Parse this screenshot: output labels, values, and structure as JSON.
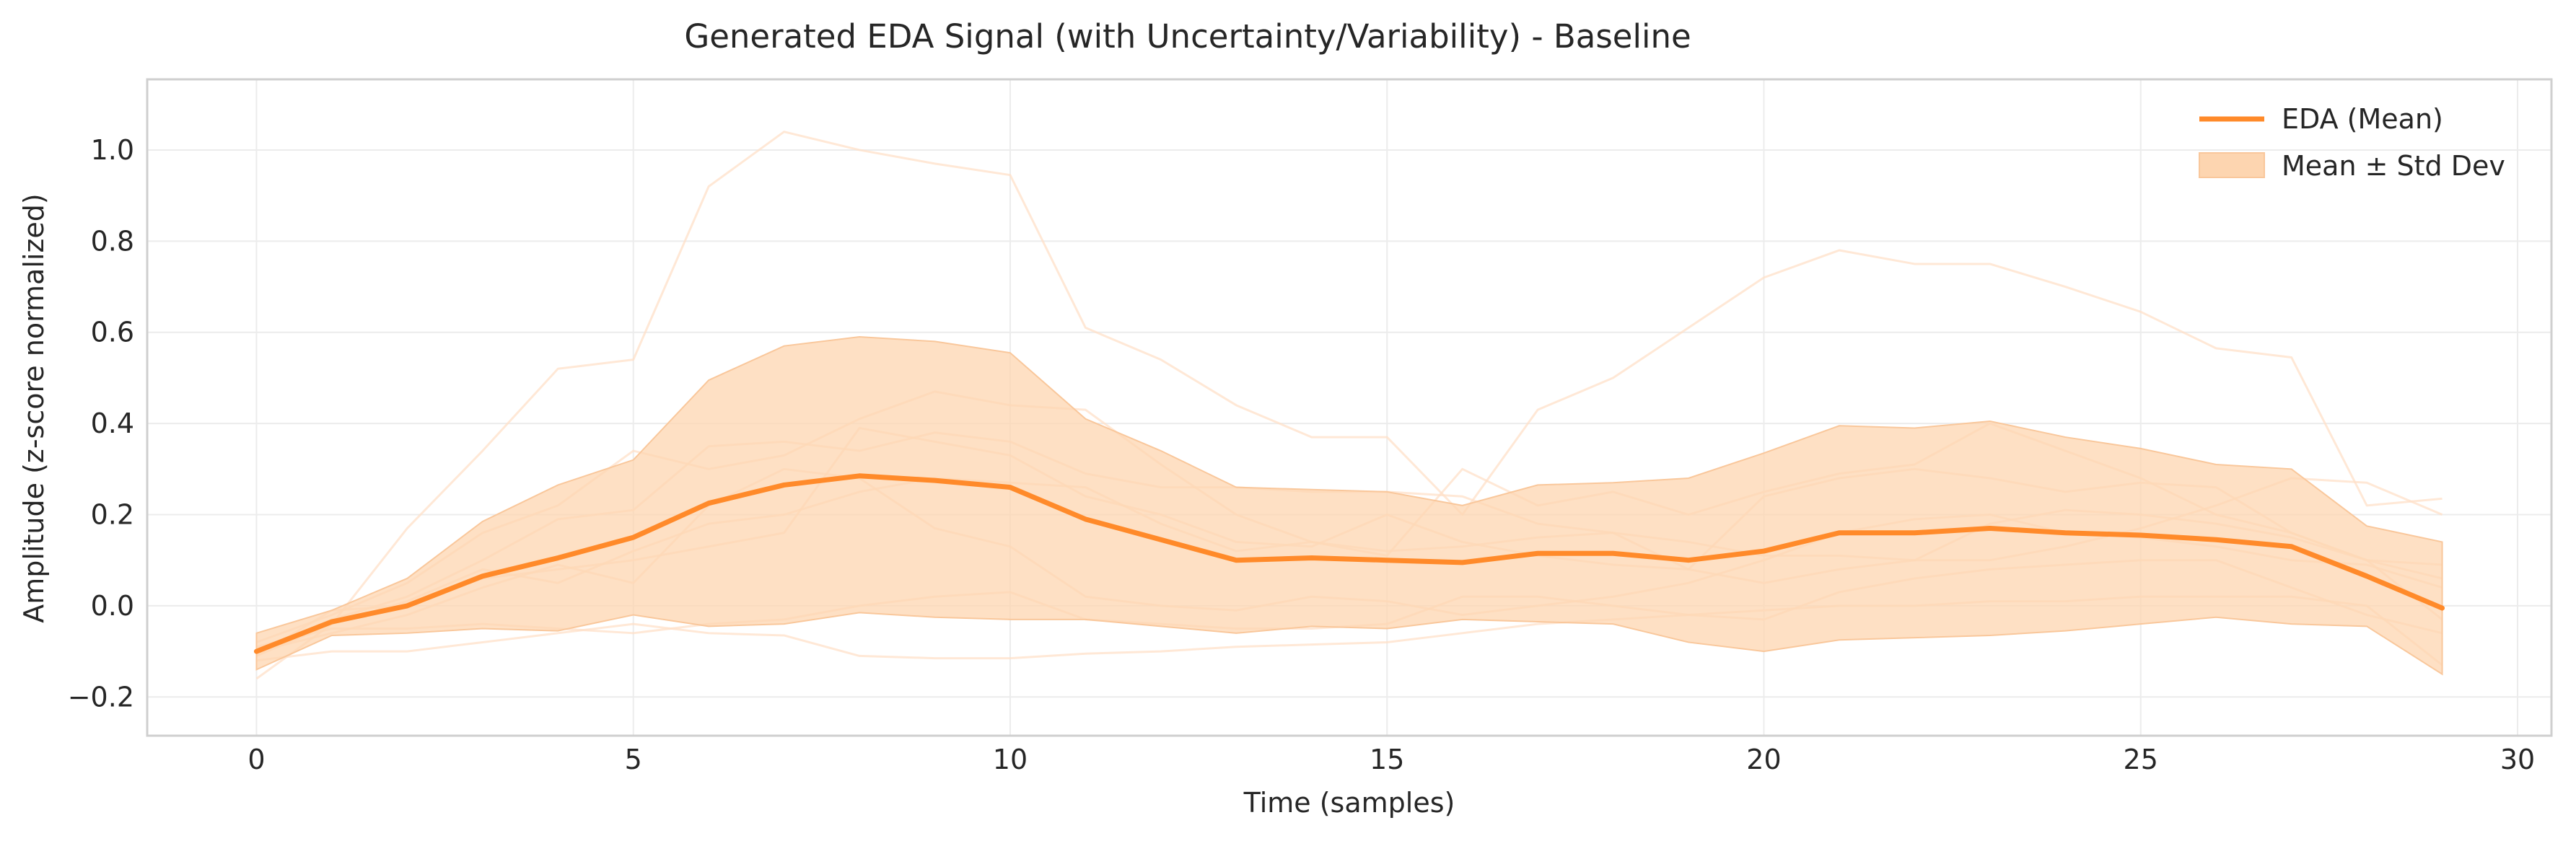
{
  "chart_data": {
    "type": "line",
    "title": "Generated EDA Signal (with Uncertainty/Variability) - Baseline",
    "xlabel": "Time (samples)",
    "ylabel": "Amplitude (z-score normalized)",
    "xlim": [
      -1.45,
      30.45
    ],
    "ylim": [
      -0.285,
      1.155
    ],
    "x_ticks": [
      0,
      5,
      10,
      15,
      20,
      25,
      30
    ],
    "y_ticks": [
      -0.2,
      0.0,
      0.2,
      0.4,
      0.6,
      0.8,
      1.0
    ],
    "grid": true,
    "legend_position": "top-right",
    "colors": {
      "mean": "#ff8a2a",
      "band": "#fdd5b0",
      "band_edge": "#f9c79b",
      "sample": "#ffe0c8"
    },
    "x": [
      0,
      1,
      2,
      3,
      4,
      5,
      6,
      7,
      8,
      9,
      10,
      11,
      12,
      13,
      14,
      15,
      16,
      17,
      18,
      19,
      20,
      21,
      22,
      23,
      24,
      25,
      26,
      27,
      28,
      29
    ],
    "series": [
      {
        "name": "EDA (Mean)",
        "values": [
          -0.1,
          -0.035,
          0.0,
          0.065,
          0.105,
          0.15,
          0.225,
          0.265,
          0.285,
          0.275,
          0.26,
          0.19,
          0.145,
          0.1,
          0.105,
          0.1,
          0.095,
          0.115,
          0.115,
          0.1,
          0.12,
          0.16,
          0.16,
          0.17,
          0.16,
          0.155,
          0.145,
          0.13,
          0.065,
          -0.005
        ]
      }
    ],
    "band": {
      "name": "Mean ± Std Dev",
      "upper": [
        -0.06,
        -0.01,
        0.06,
        0.185,
        0.265,
        0.32,
        0.495,
        0.57,
        0.59,
        0.58,
        0.555,
        0.41,
        0.34,
        0.26,
        0.255,
        0.25,
        0.22,
        0.265,
        0.27,
        0.28,
        0.335,
        0.395,
        0.39,
        0.405,
        0.37,
        0.345,
        0.31,
        0.3,
        0.175,
        0.14
      ],
      "lower": [
        -0.14,
        -0.065,
        -0.06,
        -0.05,
        -0.055,
        -0.02,
        -0.045,
        -0.04,
        -0.015,
        -0.025,
        -0.03,
        -0.03,
        -0.045,
        -0.06,
        -0.045,
        -0.05,
        -0.03,
        -0.035,
        -0.04,
        -0.08,
        -0.1,
        -0.075,
        -0.07,
        -0.065,
        -0.055,
        -0.04,
        -0.025,
        -0.04,
        -0.045,
        -0.15
      ]
    },
    "samples": [
      [
        -0.16,
        -0.04,
        0.17,
        0.34,
        0.52,
        0.54,
        0.92,
        1.04,
        1.0,
        0.97,
        0.945,
        0.61,
        0.54,
        0.44,
        0.37,
        0.37,
        0.2,
        0.43,
        0.5,
        0.61,
        0.72,
        0.78,
        0.75,
        0.75,
        0.7,
        0.645,
        0.565,
        0.545,
        0.22,
        0.235
      ],
      [
        -0.08,
        -0.02,
        0.05,
        0.16,
        0.22,
        0.34,
        0.3,
        0.33,
        0.41,
        0.47,
        0.44,
        0.43,
        0.31,
        0.2,
        0.14,
        0.11,
        0.3,
        0.22,
        0.25,
        0.2,
        0.25,
        0.29,
        0.31,
        0.4,
        0.34,
        0.28,
        0.2,
        0.16,
        0.1,
        0.09
      ],
      [
        -0.12,
        -0.1,
        -0.1,
        -0.08,
        -0.06,
        -0.04,
        -0.06,
        -0.065,
        -0.11,
        -0.115,
        -0.115,
        -0.105,
        -0.1,
        -0.09,
        -0.085,
        -0.08,
        -0.06,
        -0.04,
        -0.03,
        -0.02,
        -0.01,
        0.0,
        0.0,
        0.01,
        0.01,
        0.02,
        0.02,
        0.02,
        0.0,
        -0.13
      ],
      [
        -0.1,
        -0.03,
        0.02,
        0.1,
        0.19,
        0.21,
        0.35,
        0.36,
        0.34,
        0.38,
        0.36,
        0.29,
        0.26,
        0.26,
        0.25,
        0.25,
        0.24,
        0.18,
        0.16,
        0.14,
        0.11,
        0.11,
        0.1,
        0.1,
        0.13,
        0.17,
        0.22,
        0.28,
        0.27,
        0.2
      ],
      [
        -0.09,
        -0.05,
        -0.05,
        -0.04,
        -0.05,
        -0.06,
        -0.04,
        -0.03,
        0.0,
        0.02,
        0.03,
        -0.03,
        -0.04,
        -0.05,
        -0.05,
        -0.04,
        0.02,
        0.02,
        0.0,
        -0.02,
        -0.03,
        0.03,
        0.06,
        0.08,
        0.09,
        0.1,
        0.1,
        0.04,
        -0.02,
        -0.06
      ],
      [
        -0.11,
        -0.01,
        0.0,
        0.06,
        0.08,
        0.1,
        0.13,
        0.16,
        0.39,
        0.36,
        0.33,
        0.24,
        0.2,
        0.14,
        0.13,
        0.2,
        0.14,
        0.11,
        0.09,
        0.08,
        0.24,
        0.28,
        0.3,
        0.28,
        0.25,
        0.27,
        0.26,
        0.16,
        0.1,
        0.06
      ],
      [
        -0.1,
        -0.06,
        -0.02,
        0.04,
        0.09,
        0.05,
        0.22,
        0.3,
        0.28,
        0.17,
        0.13,
        0.02,
        0.0,
        -0.01,
        0.02,
        0.01,
        -0.02,
        0.0,
        0.02,
        0.05,
        0.1,
        0.16,
        0.19,
        0.2,
        0.16,
        0.15,
        0.13,
        0.1,
        0.09,
        0.04
      ],
      [
        -0.11,
        -0.04,
        0.01,
        0.08,
        0.05,
        0.12,
        0.18,
        0.2,
        0.25,
        0.28,
        0.27,
        0.26,
        0.18,
        0.12,
        0.14,
        0.12,
        0.13,
        0.15,
        0.16,
        0.08,
        0.05,
        0.08,
        0.1,
        0.18,
        0.21,
        0.2,
        0.18,
        0.15,
        0.1,
        -0.03
      ]
    ]
  }
}
